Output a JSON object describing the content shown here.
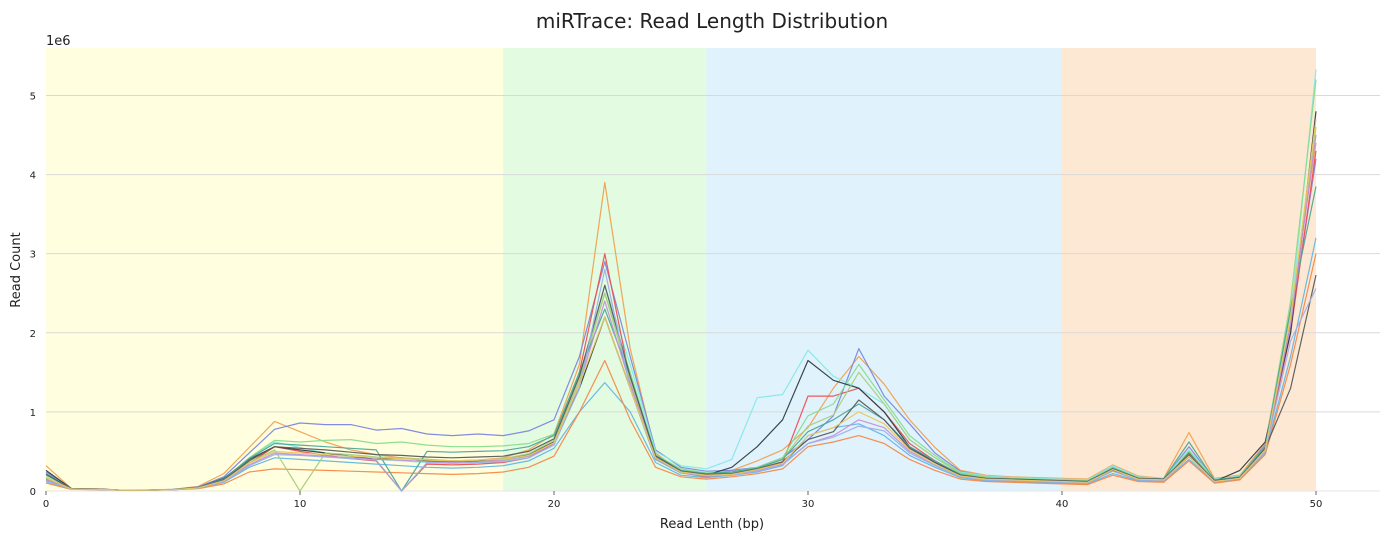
{
  "chart_data": {
    "type": "line",
    "title": "miRTrace: Read Length Distribution",
    "xlabel": "Read Lenth (bp)",
    "ylabel": "Read Count",
    "y_offset_label": "1e6",
    "xlim": [
      0,
      52.5
    ],
    "ylim": [
      0,
      5600000
    ],
    "x_ticks": [
      0,
      10,
      20,
      30,
      40,
      50
    ],
    "y_ticks": [
      0,
      1,
      2,
      3,
      4,
      5
    ],
    "grid": "horizontal",
    "legend": "none",
    "regions": [
      {
        "x0": 0,
        "x1": 18,
        "color": "#ffffe0"
      },
      {
        "x0": 18,
        "x1": 26,
        "color": "#e3fbe0"
      },
      {
        "x0": 26,
        "x1": 40,
        "color": "#e0f3fc"
      },
      {
        "x0": 40,
        "x1": 50,
        "color": "#fde9d3"
      }
    ],
    "x": [
      0,
      1,
      2,
      3,
      4,
      5,
      6,
      7,
      8,
      9,
      10,
      11,
      12,
      13,
      14,
      15,
      16,
      17,
      18,
      19,
      20,
      21,
      22,
      23,
      24,
      25,
      26,
      27,
      28,
      29,
      30,
      31,
      32,
      33,
      34,
      35,
      36,
      37,
      38,
      39,
      40,
      41,
      42,
      43,
      44,
      45,
      46,
      47,
      48,
      49,
      50
    ],
    "series": [
      {
        "color": "#f0a050",
        "values": [
          320000,
          30000,
          30000,
          10000,
          15000,
          20000,
          60000,
          220000,
          550000,
          880000,
          750000,
          620000,
          520000,
          460000,
          420000,
          400000,
          380000,
          390000,
          420000,
          520000,
          720000,
          1600000,
          3900000,
          1800000,
          480000,
          240000,
          200000,
          260000,
          380000,
          520000,
          800000,
          1300000,
          1700000,
          1350000,
          900000,
          550000,
          260000,
          200000,
          180000,
          170000,
          160000,
          150000,
          330000,
          190000,
          160000,
          740000,
          160000,
          200000,
          600000,
          2300000,
          4400000
        ]
      },
      {
        "color": "#7b86e0",
        "values": [
          240000,
          30000,
          25000,
          10000,
          12000,
          20000,
          50000,
          180000,
          480000,
          780000,
          860000,
          840000,
          840000,
          770000,
          790000,
          720000,
          700000,
          720000,
          700000,
          760000,
          900000,
          1700000,
          2900000,
          1700000,
          520000,
          300000,
          250000,
          260000,
          300000,
          420000,
          650000,
          950000,
          1800000,
          1200000,
          850000,
          480000,
          250000,
          180000,
          160000,
          150000,
          140000,
          130000,
          300000,
          170000,
          150000,
          560000,
          140000,
          180000,
          580000,
          2100000,
          4200000
        ]
      },
      {
        "color": "#85e8e8",
        "values": [
          180000,
          28000,
          22000,
          10000,
          12000,
          18000,
          45000,
          150000,
          420000,
          620000,
          550000,
          480000,
          430000,
          400000,
          380000,
          360000,
          350000,
          360000,
          380000,
          440000,
          620000,
          1400000,
          2600000,
          1600000,
          500000,
          320000,
          280000,
          400000,
          1180000,
          1220000,
          1780000,
          1450000,
          1300000,
          1100000,
          650000,
          420000,
          240000,
          190000,
          170000,
          160000,
          150000,
          140000,
          320000,
          180000,
          160000,
          520000,
          150000,
          190000,
          560000,
          2200000,
          5330000
        ]
      },
      {
        "color": "#ef4e55",
        "values": [
          150000,
          25000,
          20000,
          10000,
          12000,
          16000,
          40000,
          120000,
          350000,
          560000,
          500000,
          450000,
          410000,
          380000,
          360,
          340000,
          330000,
          340000,
          360000,
          420000,
          600000,
          1500000,
          3000000,
          1400000,
          420000,
          230000,
          180000,
          200000,
          260000,
          360000,
          1200000,
          1200000,
          1300000,
          1000000,
          600000,
          380000,
          200000,
          160000,
          140000,
          130000,
          120000,
          110000,
          280000,
          160000,
          140000,
          480000,
          130000,
          170000,
          520000,
          2000000,
          4300000
        ]
      },
      {
        "color": "#88dc8c",
        "values": [
          200000,
          28000,
          22000,
          10000,
          12000,
          18000,
          45000,
          150000,
          420000,
          640000,
          620000,
          640000,
          650000,
          600000,
          620000,
          580000,
          560000,
          560000,
          570000,
          600000,
          720000,
          1450000,
          2500000,
          1500000,
          460000,
          280000,
          230000,
          240000,
          300000,
          420000,
          950000,
          1100000,
          1600000,
          1150000,
          700000,
          450000,
          230000,
          180000,
          160000,
          150000,
          140000,
          130000,
          300000,
          170000,
          150000,
          500000,
          140000,
          180000,
          560000,
          2400000,
          5200000
        ]
      },
      {
        "color": "#2e3d45",
        "values": [
          260000,
          30000,
          25000,
          10000,
          12000,
          18000,
          45000,
          160000,
          400000,
          560000,
          520000,
          480000,
          440000,
          400000,
          420000,
          380000,
          370000,
          380000,
          400000,
          460000,
          620000,
          1300000,
          2200000,
          1300000,
          400000,
          230000,
          200000,
          300000,
          560000,
          900000,
          1650000,
          1400000,
          1300000,
          1000000,
          560000,
          360000,
          200000,
          150000,
          130000,
          120000,
          110000,
          100000,
          260000,
          150000,
          130000,
          480000,
          120000,
          260000,
          620000,
          2000000,
          4800000
        ]
      },
      {
        "color": "#64b5e6",
        "values": [
          120000,
          22000,
          18000,
          10000,
          12000,
          15000,
          35000,
          110000,
          300000,
          420000,
          400000,
          380000,
          360000,
          340000,
          320000,
          300000,
          290000,
          300000,
          320000,
          380000,
          540000,
          1000000,
          1370000,
          1000000,
          360000,
          200000,
          170000,
          200000,
          240000,
          320000,
          700000,
          800000,
          850000,
          700000,
          450000,
          300000,
          170000,
          130000,
          120000,
          110000,
          100000,
          90000,
          220000,
          130000,
          120000,
          400000,
          110000,
          150000,
          480000,
          1700000,
          3200000
        ]
      },
      {
        "color": "#f7884a",
        "values": [
          100000,
          20000,
          18000,
          10000,
          12000,
          15000,
          30000,
          90000,
          240000,
          280000,
          270000,
          260000,
          250000,
          240000,
          230000,
          220000,
          210000,
          220000,
          240000,
          300000,
          440000,
          1000000,
          1650000,
          900000,
          300000,
          180000,
          150000,
          180000,
          220000,
          280000,
          560000,
          620000,
          700000,
          600000,
          400000,
          260000,
          150000,
          120000,
          110000,
          100000,
          90000,
          80000,
          200000,
          120000,
          110000,
          380000,
          100000,
          140000,
          460000,
          1600000,
          3000000
        ]
      },
      {
        "color": "#a8cf7a",
        "values": [
          160000,
          25000,
          20000,
          10000,
          12000,
          16000,
          40000,
          130000,
          360000,
          520000,
          500,
          480000,
          460000,
          430000,
          420000,
          400000,
          380000,
          390000,
          410000,
          470000,
          640000,
          1400000,
          2500000,
          1400000,
          440000,
          250000,
          210000,
          230000,
          290000,
          400000,
          820000,
          960000,
          1500000,
          1100000,
          650000,
          420000,
          220000,
          170000,
          150000,
          140000,
          130000,
          120000,
          290000,
          160000,
          140000,
          470000,
          130000,
          170000,
          540000,
          2200000,
          4600000
        ]
      },
      {
        "color": "#4ba89a",
        "values": [
          220000,
          28000,
          22000,
          10000,
          12000,
          18000,
          45000,
          150000,
          410000,
          600000,
          580000,
          560000,
          540000,
          520000,
          530,
          500000,
          490000,
          500000,
          510000,
          560000,
          700000,
          1500000,
          2300000,
          1450000,
          450000,
          260000,
          220000,
          240000,
          290000,
          400000,
          750000,
          900000,
          1100000,
          900000,
          560000,
          380000,
          210000,
          160000,
          150000,
          140000,
          130000,
          120000,
          290000,
          160000,
          150000,
          620000,
          140000,
          180000,
          560000,
          2300000,
          3850000
        ]
      },
      {
        "color": "#c48ed8",
        "values": [
          140000,
          24000,
          20000,
          10000,
          12000,
          15000,
          38000,
          120000,
          330000,
          480000,
          460000,
          440000,
          420000,
          400000,
          390000,
          370000,
          360000,
          370000,
          390000,
          440000,
          600000,
          1350000,
          2400000,
          1350000,
          420000,
          240000,
          200000,
          210000,
          260000,
          340000,
          600000,
          700000,
          900000,
          800000,
          500000,
          330000,
          190000,
          150000,
          140000,
          130000,
          120000,
          110000,
          270000,
          150000,
          140000,
          450000,
          120000,
          160000,
          520000,
          2100000,
          4500000
        ]
      },
      {
        "color": "#5a5a5a",
        "values": [
          210000,
          27000,
          22000,
          10000,
          12000,
          17000,
          42000,
          140000,
          380000,
          560000,
          540000,
          520000,
          490000,
          460000,
          450000,
          430000,
          420000,
          430000,
          440000,
          500000,
          660000,
          1450000,
          2600000,
          1450000,
          440000,
          250000,
          210000,
          220000,
          280000,
          370000,
          650000,
          750000,
          1150000,
          900000,
          540000,
          360000,
          200000,
          160000,
          150000,
          140000,
          130000,
          120000,
          280000,
          160000,
          150000,
          460000,
          130000,
          170000,
          540000,
          1300000,
          2730000
        ]
      },
      {
        "color": "#9db0e8",
        "values": [
          130000,
          24000,
          20000,
          10000,
          12000,
          15000,
          36000,
          115000,
          320000,
          460000,
          450000,
          430000,
          410000,
          390000,
          380,
          360000,
          350000,
          360000,
          370000,
          420000,
          580000,
          1300000,
          2800000,
          1300000,
          400000,
          230000,
          190000,
          200000,
          250000,
          330000,
          600000,
          680000,
          820000,
          760000,
          480000,
          320000,
          180000,
          140000,
          130000,
          120000,
          110000,
          100000,
          250000,
          140000,
          130000,
          430000,
          120000,
          160000,
          500000,
          1900000,
          2560000
        ]
      },
      {
        "color": "#e8c860",
        "values": [
          170000,
          25000,
          21000,
          10000,
          12000,
          16000,
          40000,
          130000,
          350000,
          500000,
          480000,
          460000,
          440000,
          420000,
          410000,
          390000,
          380000,
          390000,
          400000,
          450000,
          610000,
          1350000,
          2200000,
          1300000,
          420000,
          240000,
          200000,
          210000,
          270000,
          350000,
          700000,
          800000,
          1000000,
          850000,
          520000,
          340000,
          190000,
          150000,
          140000,
          130000,
          120000,
          110000,
          270000,
          150000,
          140000,
          440000,
          120000,
          160000,
          520000,
          2200000,
          4700000
        ]
      }
    ]
  }
}
